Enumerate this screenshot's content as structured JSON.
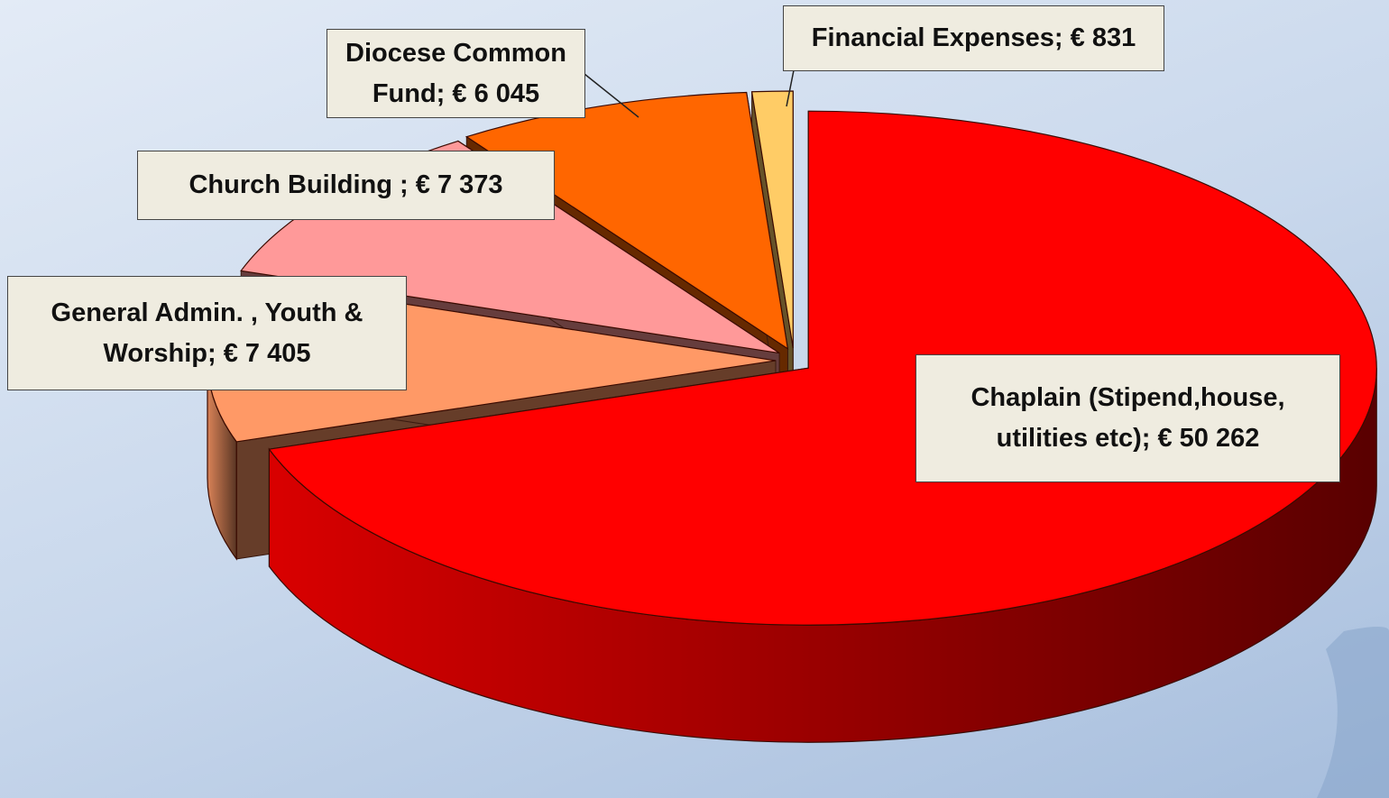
{
  "chart_data": {
    "type": "pie",
    "categories": [
      "Chaplain (Stipend,house, utilities etc);",
      "General Admin. , Youth & Worship;",
      "Church Building ;",
      "Diocese Common Fund;",
      "Financial Expenses;"
    ],
    "values": [
      50262,
      7405,
      7373,
      6045,
      831
    ],
    "value_labels": [
      "€ 50 262",
      "€ 7 405",
      "€ 7 373",
      "€ 6 045",
      "€ 831"
    ],
    "colors": [
      "#ff0000",
      "#ff9966",
      "#ff9999",
      "#ff6600",
      "#ffcc66"
    ]
  }
}
